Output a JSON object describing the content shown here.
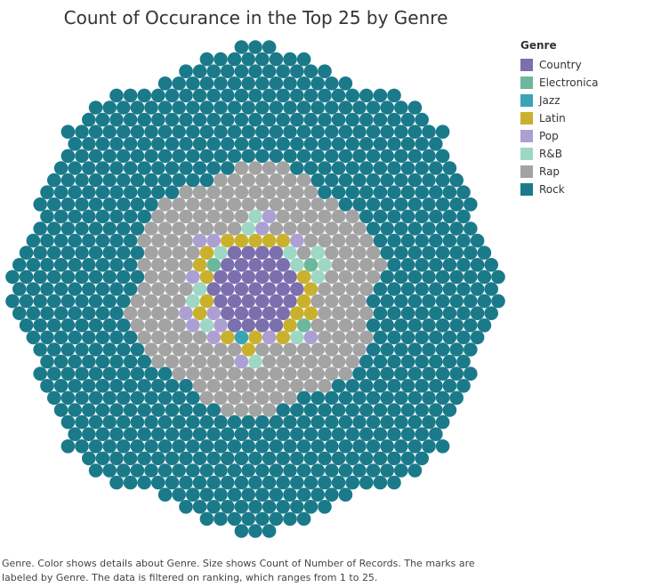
{
  "chart_data": {
    "type": "packed-bubble",
    "title": "Count of Occurance in the Top 25 by Genre",
    "legend_title": "Genre",
    "legend_position": "right",
    "series": [
      {
        "name": "Country",
        "color": "#7b6fae"
      },
      {
        "name": "Electronica",
        "color": "#6bb89c"
      },
      {
        "name": "Jazz",
        "color": "#3aa4b4"
      },
      {
        "name": "Latin",
        "color": "#c9b12e"
      },
      {
        "name": "Pop",
        "color": "#ac9fd2"
      },
      {
        "name": "R&B",
        "color": "#9ed8c4"
      },
      {
        "name": "Rap",
        "color": "#a3a3a3"
      },
      {
        "name": "Rock",
        "color": "#1a7a8a"
      }
    ]
  },
  "caption": "Genre.  Color shows details about Genre.  Size shows Count of Number of Records.  The marks are labeled by Genre. The data is filtered on ranking, which ranges from 1 to 25."
}
